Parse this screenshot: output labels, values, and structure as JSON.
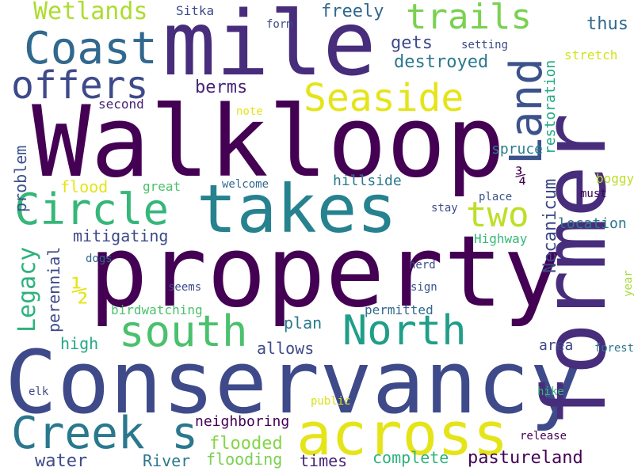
{
  "words": [
    {
      "text": "Walkloop",
      "color": "#440154"
    },
    {
      "text": "property",
      "color": "#440154"
    },
    {
      "text": "Conservancy",
      "color": "#3e4a89"
    },
    {
      "text": "mile",
      "color": "#472d7b"
    },
    {
      "text": "former",
      "color": "#472d7b"
    },
    {
      "text": "takes",
      "color": "#26828e"
    },
    {
      "text": "across",
      "color": "#e5e419"
    },
    {
      "text": "Coast",
      "color": "#31688e"
    },
    {
      "text": "offers",
      "color": "#3e4a89"
    },
    {
      "text": "Circle",
      "color": "#35b779"
    },
    {
      "text": "Land",
      "color": "#3b528b"
    },
    {
      "text": "Seaside",
      "color": "#e5e419"
    },
    {
      "text": "trails",
      "color": "#7ad151"
    },
    {
      "text": "two",
      "color": "#bddf26"
    },
    {
      "text": "North",
      "color": "#1f9e89"
    },
    {
      "text": "south",
      "color": "#4ac16d"
    },
    {
      "text": "Creek s",
      "color": "#2a788e"
    },
    {
      "text": "Wetlands",
      "color": "#addc30"
    },
    {
      "text": "½",
      "color": "#e5e419"
    },
    {
      "text": "¾",
      "color": "#440154"
    },
    {
      "text": "Legacy",
      "color": "#2db27d"
    },
    {
      "text": "perennial",
      "color": "#3e4a89"
    },
    {
      "text": "problem",
      "color": "#3b528b"
    },
    {
      "text": "Necanicum",
      "color": "#3e4a89"
    },
    {
      "text": "restoration",
      "color": "#22a884"
    },
    {
      "text": "gets",
      "color": "#3e4a89"
    },
    {
      "text": "destroyed",
      "color": "#2a788e"
    },
    {
      "text": "freely",
      "color": "#31688e"
    },
    {
      "text": "thus",
      "color": "#31688e"
    },
    {
      "text": "stretch",
      "color": "#d2e21b"
    },
    {
      "text": "setting",
      "color": "#3e4a89"
    },
    {
      "text": "form",
      "color": "#3e4a89"
    },
    {
      "text": "Sitka",
      "color": "#3e4a89"
    },
    {
      "text": "berms",
      "color": "#482475"
    },
    {
      "text": "second",
      "color": "#482475"
    },
    {
      "text": "note",
      "color": "#e5e419"
    },
    {
      "text": "flood",
      "color": "#e5e419"
    },
    {
      "text": "great",
      "color": "#4ac16d"
    },
    {
      "text": "welcome",
      "color": "#31688e"
    },
    {
      "text": "hillside",
      "color": "#2a788e"
    },
    {
      "text": "spruce",
      "color": "#287d8e"
    },
    {
      "text": "boggy",
      "color": "#bddf26"
    },
    {
      "text": "must",
      "color": "#440154"
    },
    {
      "text": "place",
      "color": "#3b528b"
    },
    {
      "text": "stay",
      "color": "#3e4a89"
    },
    {
      "text": "location",
      "color": "#2a788e"
    },
    {
      "text": "Highway",
      "color": "#35b779"
    },
    {
      "text": "mitigating",
      "color": "#3e4a89"
    },
    {
      "text": "dogs",
      "color": "#31688e"
    },
    {
      "text": "herd",
      "color": "#3e4a89"
    },
    {
      "text": "seems",
      "color": "#3e4a89"
    },
    {
      "text": "sign",
      "color": "#3b528b"
    },
    {
      "text": "birdwatching",
      "color": "#4ac16d"
    },
    {
      "text": "permitted",
      "color": "#31688e"
    },
    {
      "text": "year",
      "color": "#a5db36"
    },
    {
      "text": "plan",
      "color": "#2a788e"
    },
    {
      "text": "high",
      "color": "#22a884"
    },
    {
      "text": "allows",
      "color": "#3e4a89"
    },
    {
      "text": "area",
      "color": "#3e4a89"
    },
    {
      "text": "forest",
      "color": "#2a788e"
    },
    {
      "text": "elk",
      "color": "#3e4a89"
    },
    {
      "text": "public",
      "color": "#d8e219"
    },
    {
      "text": "hike",
      "color": "#35b779"
    },
    {
      "text": "neighboring",
      "color": "#440154"
    },
    {
      "text": "release",
      "color": "#440154"
    },
    {
      "text": "flooded",
      "color": "#86d549"
    },
    {
      "text": "complete",
      "color": "#2db27d"
    },
    {
      "text": "pastureland",
      "color": "#440154"
    },
    {
      "text": "water",
      "color": "#3e4a89"
    },
    {
      "text": "River",
      "color": "#2a788e"
    },
    {
      "text": "flooding",
      "color": "#7ad151"
    },
    {
      "text": "times",
      "color": "#482475"
    }
  ]
}
